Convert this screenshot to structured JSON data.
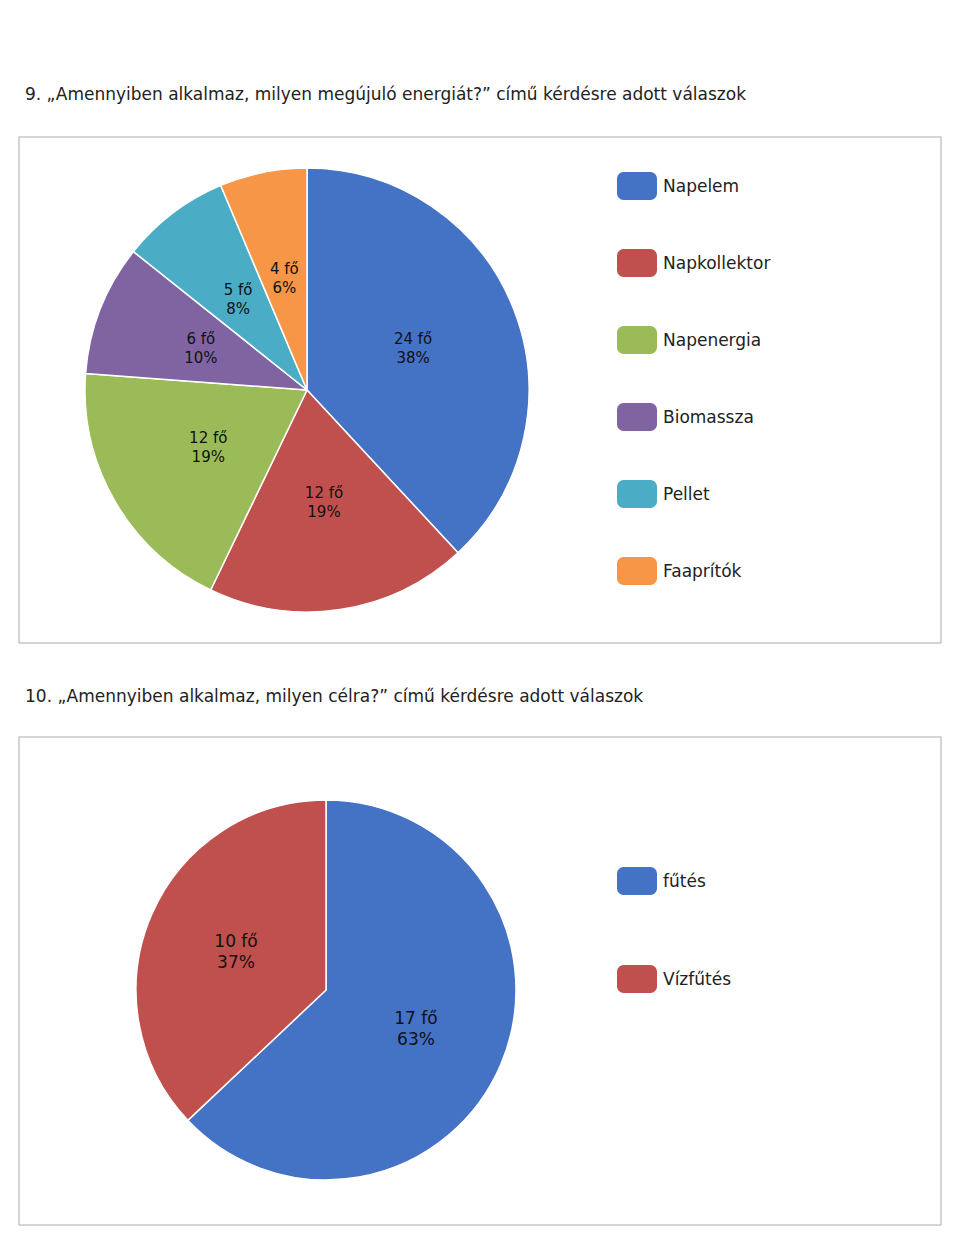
{
  "chart_data": [
    {
      "type": "pie",
      "title": "9. „Amennyiben alkalmaz, milyen megújuló energiát?” című kérdésre adott válaszok",
      "categories": [
        "Napelem",
        "Napkollektor",
        "Napenergia",
        "Biomassza",
        "Pellet",
        "Faaprítók"
      ],
      "values": [
        24,
        12,
        12,
        6,
        5,
        4
      ],
      "value_labels": [
        "24 fő",
        "12 fő",
        "12 fő",
        "6 fő",
        "5 fő",
        "4 fő"
      ],
      "percents": [
        38,
        19,
        19,
        10,
        8,
        6
      ],
      "percent_labels": [
        "38%",
        "19%",
        "19%",
        "10%",
        "8%",
        "6%"
      ],
      "colors": [
        "#4472C4",
        "#C0504D",
        "#9BBB59",
        "#8064A2",
        "#4BACC6",
        "#F79646"
      ],
      "data_labels": true,
      "legend": "right"
    },
    {
      "type": "pie",
      "title": "10. „Amennyiben alkalmaz, milyen célra?” című kérdésre adott válaszok",
      "categories": [
        "fűtés",
        "Vízfűtés"
      ],
      "values": [
        17,
        10
      ],
      "value_labels": [
        "17 fő",
        "10 fő"
      ],
      "percents": [
        63,
        37
      ],
      "percent_labels": [
        "63%",
        "37%"
      ],
      "colors": [
        "#4472C4",
        "#C0504D"
      ],
      "data_labels": true,
      "legend": "right"
    }
  ]
}
